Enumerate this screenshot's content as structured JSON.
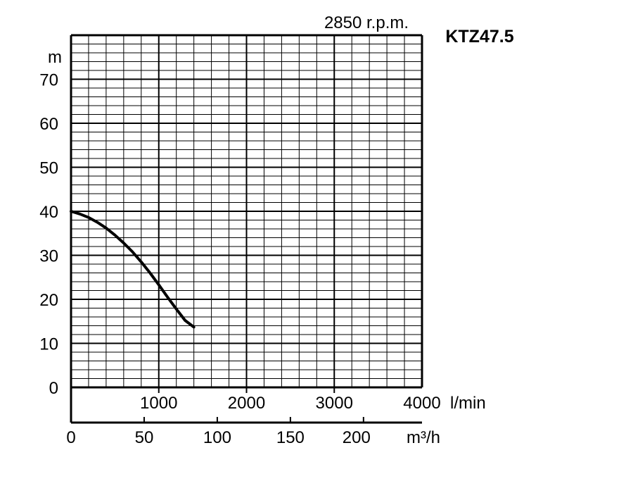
{
  "chart_data": {
    "type": "line",
    "model": "KTZ47.5",
    "speed": "2850 r.p.m.",
    "y_unit": "m",
    "y_ticks": [
      "0",
      "10",
      "20",
      "30",
      "40",
      "50",
      "60",
      "70"
    ],
    "ylim": [
      0,
      80
    ],
    "x_lmin_ticks": [
      "1000",
      "2000",
      "3000",
      "4000"
    ],
    "x_lmin_unit": "l/min",
    "xlim_lmin": [
      0,
      4000
    ],
    "x_m3h_ticks": [
      "0",
      "50",
      "100",
      "150",
      "200"
    ],
    "x_m3h_unit": "m³/h",
    "grid": true,
    "series": [
      {
        "x": [
          0,
          100,
          200,
          300,
          400,
          500,
          600,
          700,
          800,
          900,
          1000,
          1100,
          1200,
          1300,
          1400
        ],
        "y": [
          40,
          39.4,
          38.6,
          37.5,
          36.2,
          34.6,
          32.8,
          30.8,
          28.5,
          26.0,
          23.3,
          20.5,
          17.8,
          15.2,
          13.7
        ]
      }
    ],
    "colors": {
      "grid": "#000000",
      "curve": "#000000",
      "background": "#ffffff"
    }
  }
}
